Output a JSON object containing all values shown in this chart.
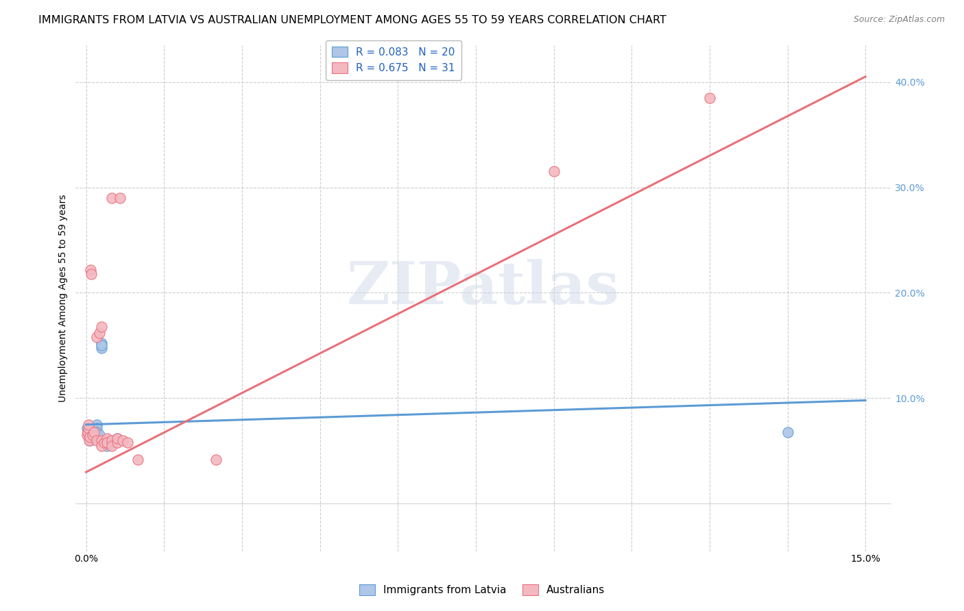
{
  "title": "IMMIGRANTS FROM LATVIA VS AUSTRALIAN UNEMPLOYMENT AMONG AGES 55 TO 59 YEARS CORRELATION CHART",
  "source": "Source: ZipAtlas.com",
  "ylabel": "Unemployment Among Ages 55 to 59 years",
  "xlim": [
    -0.002,
    0.155
  ],
  "ylim": [
    -0.045,
    0.435
  ],
  "xticks": [
    0.0,
    0.015,
    0.03,
    0.045,
    0.06,
    0.075,
    0.09,
    0.105,
    0.12,
    0.135,
    0.15
  ],
  "yticks_right": [
    0.1,
    0.2,
    0.3,
    0.4
  ],
  "watermark_text": "ZIPatlas",
  "blue_scatter": [
    [
      0.0002,
      0.072
    ],
    [
      0.0003,
      0.068
    ],
    [
      0.0005,
      0.065
    ],
    [
      0.0007,
      0.06
    ],
    [
      0.001,
      0.07
    ],
    [
      0.001,
      0.068
    ],
    [
      0.0012,
      0.072
    ],
    [
      0.0015,
      0.065
    ],
    [
      0.002,
      0.075
    ],
    [
      0.002,
      0.072
    ],
    [
      0.002,
      0.068
    ],
    [
      0.0025,
      0.065
    ],
    [
      0.003,
      0.148
    ],
    [
      0.003,
      0.152
    ],
    [
      0.003,
      0.15
    ],
    [
      0.004,
      0.06
    ],
    [
      0.004,
      0.055
    ],
    [
      0.005,
      0.058
    ],
    [
      0.006,
      0.062
    ],
    [
      0.135,
      0.068
    ]
  ],
  "pink_scatter": [
    [
      0.0002,
      0.065
    ],
    [
      0.0003,
      0.068
    ],
    [
      0.0004,
      0.072
    ],
    [
      0.0005,
      0.075
    ],
    [
      0.0006,
      0.06
    ],
    [
      0.0007,
      0.063
    ],
    [
      0.0008,
      0.222
    ],
    [
      0.001,
      0.218
    ],
    [
      0.0012,
      0.065
    ],
    [
      0.0015,
      0.068
    ],
    [
      0.002,
      0.06
    ],
    [
      0.002,
      0.158
    ],
    [
      0.0025,
      0.162
    ],
    [
      0.003,
      0.168
    ],
    [
      0.003,
      0.06
    ],
    [
      0.003,
      0.055
    ],
    [
      0.0035,
      0.058
    ],
    [
      0.004,
      0.062
    ],
    [
      0.004,
      0.058
    ],
    [
      0.005,
      0.29
    ],
    [
      0.005,
      0.06
    ],
    [
      0.005,
      0.055
    ],
    [
      0.006,
      0.058
    ],
    [
      0.006,
      0.062
    ],
    [
      0.0065,
      0.29
    ],
    [
      0.007,
      0.06
    ],
    [
      0.008,
      0.058
    ],
    [
      0.01,
      0.042
    ],
    [
      0.025,
      0.042
    ],
    [
      0.09,
      0.315
    ],
    [
      0.12,
      0.385
    ]
  ],
  "blue_line_x": [
    0.0,
    0.15
  ],
  "blue_line_y": [
    0.075,
    0.098
  ],
  "pink_line_x": [
    0.0,
    0.15
  ],
  "pink_line_y": [
    0.03,
    0.405
  ],
  "blue_color": "#5b9bd5",
  "pink_color": "#e8707a",
  "blue_scatter_color": "#aec6e8",
  "pink_scatter_color": "#f4b8c1",
  "title_fontsize": 11.5,
  "axis_label_fontsize": 10,
  "tick_fontsize": 10,
  "legend_fontsize": 11
}
